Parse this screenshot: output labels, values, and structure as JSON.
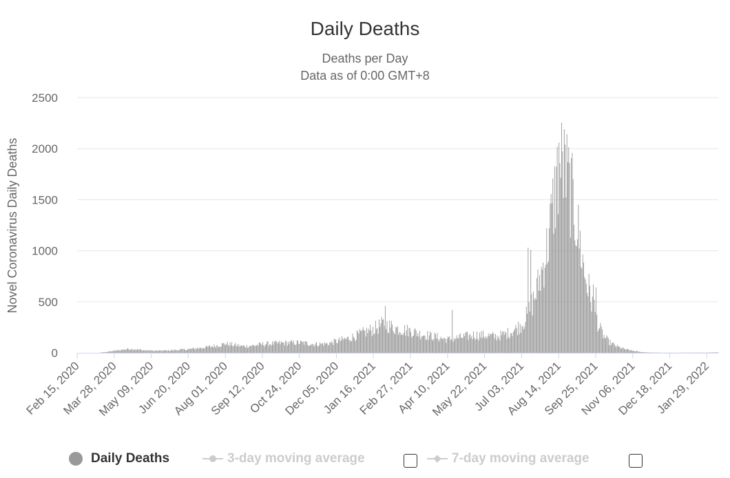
{
  "colors": {
    "bar": "#999999",
    "grid": "#e6e6e6",
    "axis": "#ccd6eb",
    "disabled": "#cccccc"
  },
  "chart_data": {
    "type": "bar",
    "title": "Daily Deaths",
    "subtitle": [
      "Deaths per Day",
      "Data as of 0:00 GMT+8"
    ],
    "ylabel": "Novel Coronavirus Daily Deaths",
    "xlabel": "",
    "ylim": [
      0,
      2500
    ],
    "yticks": [
      0,
      500,
      1000,
      1500,
      2000,
      2500
    ],
    "xlim": [
      "2020-02-15",
      "2022-02-11"
    ],
    "xticks": [
      "Feb 15, 2020",
      "Mar 28, 2020",
      "May 09, 2020",
      "Jun 20, 2020",
      "Aug 01, 2020",
      "Sep 12, 2020",
      "Oct 24, 2020",
      "Dec 05, 2020",
      "Jan 16, 2021",
      "Feb 27, 2021",
      "Apr 10, 2021",
      "May 22, 2021",
      "Jul 03, 2021",
      "Aug 14, 2021",
      "Sep 25, 2021",
      "Nov 06, 2021",
      "Dec 18, 2021",
      "Jan 29, 2022"
    ],
    "grid": true,
    "legend_position": "bottom",
    "series": [
      {
        "name": "Daily Deaths",
        "color": "#999999",
        "points": [
          [
            "2020-02-15",
            0
          ],
          [
            "2020-03-10",
            0
          ],
          [
            "2020-03-20",
            10
          ],
          [
            "2020-04-01",
            25
          ],
          [
            "2020-04-15",
            40
          ],
          [
            "2020-05-01",
            25
          ],
          [
            "2020-05-15",
            20
          ],
          [
            "2020-06-01",
            25
          ],
          [
            "2020-06-20",
            35
          ],
          [
            "2020-07-10",
            55
          ],
          [
            "2020-07-25",
            75
          ],
          [
            "2020-08-01",
            90
          ],
          [
            "2020-08-20",
            65
          ],
          [
            "2020-09-01",
            70
          ],
          [
            "2020-09-12",
            85
          ],
          [
            "2020-10-01",
            95
          ],
          [
            "2020-10-24",
            100
          ],
          [
            "2020-11-10",
            85
          ],
          [
            "2020-11-25",
            90
          ],
          [
            "2020-12-05",
            115
          ],
          [
            "2020-12-20",
            145
          ],
          [
            "2021-01-01",
            185
          ],
          [
            "2021-01-16",
            235
          ],
          [
            "2021-01-28",
            285
          ],
          [
            "2021-02-10",
            240
          ],
          [
            "2021-02-27",
            215
          ],
          [
            "2021-03-10",
            185
          ],
          [
            "2021-03-25",
            160
          ],
          [
            "2021-04-10",
            130
          ],
          [
            "2021-04-20",
            145
          ],
          [
            "2021-05-01",
            160
          ],
          [
            "2021-05-10",
            175
          ],
          [
            "2021-05-22",
            170
          ],
          [
            "2021-06-05",
            160
          ],
          [
            "2021-06-15",
            185
          ],
          [
            "2021-06-25",
            225
          ],
          [
            "2021-07-03",
            280
          ],
          [
            "2021-07-10",
            380
          ],
          [
            "2021-07-18",
            560
          ],
          [
            "2021-07-25",
            780
          ],
          [
            "2021-08-01",
            1050
          ],
          [
            "2021-08-07",
            1420
          ],
          [
            "2021-08-12",
            1720
          ],
          [
            "2021-08-18",
            1850
          ],
          [
            "2021-08-24",
            1700
          ],
          [
            "2021-08-31",
            1430
          ],
          [
            "2021-09-06",
            1120
          ],
          [
            "2021-09-12",
            780
          ],
          [
            "2021-09-18",
            580
          ],
          [
            "2021-09-22",
            470
          ],
          [
            "2021-09-28",
            260
          ],
          [
            "2021-10-04",
            160
          ],
          [
            "2021-10-10",
            105
          ],
          [
            "2021-10-18",
            65
          ],
          [
            "2021-10-28",
            35
          ],
          [
            "2021-11-06",
            20
          ],
          [
            "2021-11-15",
            8
          ],
          [
            "2021-11-25",
            3
          ],
          [
            "2021-12-10",
            1
          ],
          [
            "2022-01-29",
            2
          ],
          [
            "2022-02-11",
            5
          ]
        ],
        "spikes": [
          [
            "2021-01-29",
            460
          ],
          [
            "2021-04-15",
            420
          ],
          [
            "2021-07-10",
            1030
          ],
          [
            "2021-07-13",
            1010
          ],
          [
            "2021-08-14",
            2060
          ],
          [
            "2021-08-21",
            2040
          ],
          [
            "2021-09-22",
            670
          ],
          [
            "2021-09-25",
            640
          ]
        ]
      },
      {
        "name": "3-day moving average",
        "color": "#cccccc",
        "visible": false
      },
      {
        "name": "7-day moving average",
        "color": "#cccccc",
        "visible": false
      }
    ]
  },
  "legend": {
    "daily": "Daily Deaths",
    "ma3": "3-day moving average",
    "ma7": "7-day moving average"
  }
}
